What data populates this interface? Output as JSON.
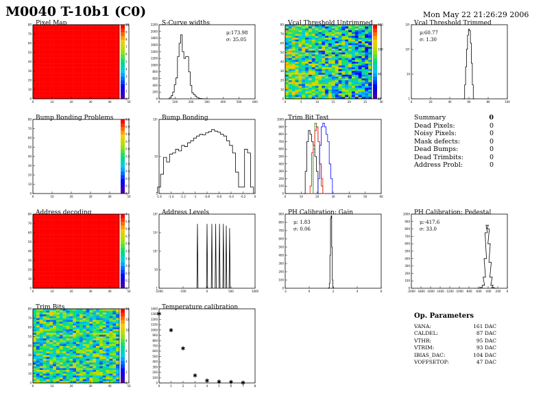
{
  "header": {
    "title": "M0040 T-10b1 (C0)",
    "date": "Mon May 22 21:26:29 2006"
  },
  "panels": {
    "pixel_map": {
      "title": "Pixel Map"
    },
    "scurve": {
      "title": "S-Curve widths",
      "mu": "μ:173.98",
      "sigma": "σ: 35.05"
    },
    "vcal_untrimmed": {
      "title": "Vcal Threshold Untrimmed"
    },
    "vcal_trimmed": {
      "title": "Vcal Threshold Trimmed",
      "mu": "μ:60.77",
      "sigma": "σ: 1.30"
    },
    "bump_problems": {
      "title": "Bump Bonding Problems"
    },
    "bump_bonding": {
      "title": "Bump Bonding"
    },
    "trim_bit_test": {
      "title": "Trim Bit Test"
    },
    "address_decoding": {
      "title": "Address decoding"
    },
    "address_levels": {
      "title": "Address Levels"
    },
    "ph_gain": {
      "title": "PH Calibration: Gain",
      "mu": "μ: 1.83",
      "sigma": "σ: 0.06"
    },
    "ph_pedestal": {
      "title": "PH Calibration: Pedestal",
      "mu": "μ:-417.6",
      "sigma": "σ: 33.0"
    },
    "trim_bits": {
      "title": "Trim Bits"
    },
    "temperature": {
      "title": "Temperature calibration"
    }
  },
  "summary": {
    "title": "Summary",
    "total": "0",
    "rows": [
      {
        "label": "Dead Pixels:",
        "value": "0"
      },
      {
        "label": "Noisy Pixels:",
        "value": "0"
      },
      {
        "label": "Mask defects:",
        "value": "0"
      },
      {
        "label": "Dead Bumps:",
        "value": "0"
      },
      {
        "label": "Dead Trimbits:",
        "value": "0"
      },
      {
        "label": "Address Probl:",
        "value": "0"
      }
    ]
  },
  "op_params": {
    "title": "Op. Parameters",
    "rows": [
      {
        "label": "VANA:",
        "value": "161 DAC"
      },
      {
        "label": "CALDEL:",
        "value": "87 DAC"
      },
      {
        "label": "VTHR:",
        "value": "95 DAC"
      },
      {
        "label": "VTRIM:",
        "value": "93 DAC"
      },
      {
        "label": "IBIAS_DAC:",
        "value": "104 DAC"
      },
      {
        "label": "VOFFSETOP:",
        "value": "47 DAC"
      }
    ]
  },
  "chart_data": [
    {
      "id": "pixel_map",
      "type": "heatmap",
      "title": "Pixel Map",
      "uniform_value": 10,
      "xticks": [
        0,
        10,
        20,
        30,
        40,
        50
      ],
      "yticks": [
        0,
        10,
        20,
        30,
        40,
        50,
        60,
        70,
        80
      ],
      "zticks": [
        "0",
        "1",
        "2",
        "3",
        "4",
        "5",
        "6",
        "7",
        "8",
        "9",
        "10"
      ]
    },
    {
      "id": "scurve",
      "type": "line",
      "title": "S-Curve widths",
      "x": [
        60,
        70,
        80,
        90,
        100,
        110,
        120,
        130,
        140,
        150,
        160,
        170,
        180,
        190,
        200,
        210,
        220,
        230,
        240,
        250,
        260,
        270,
        280,
        290,
        300
      ],
      "y": [
        0,
        30,
        90,
        200,
        420,
        620,
        1250,
        1650,
        1900,
        1400,
        1200,
        1250,
        1250,
        800,
        400,
        180,
        130,
        80,
        40,
        20,
        10,
        5,
        2,
        0,
        0
      ],
      "xlim": [
        0,
        600
      ],
      "ylim": [
        0,
        2200
      ],
      "xticks": [
        "0",
        "100",
        "200",
        "300",
        "400",
        "500",
        "600"
      ],
      "yticks": [
        "0",
        "200",
        "400",
        "600",
        "800",
        "1000",
        "1200",
        "1400",
        "1600",
        "1800",
        "2000",
        "2200"
      ]
    },
    {
      "id": "vcal_untrimmed",
      "type": "heatmap",
      "title": "Vcal Threshold Untrimmed",
      "xticks": [
        0,
        5,
        10,
        15,
        20,
        25,
        30
      ],
      "yticks": [
        0,
        10,
        20,
        30,
        40,
        50,
        60,
        70,
        80
      ],
      "zticks": [
        "80",
        "90",
        "100",
        "110"
      ]
    },
    {
      "id": "vcal_trimmed",
      "type": "line",
      "title": "Vcal Threshold Trimmed",
      "x": [
        54,
        55,
        56,
        57,
        58,
        59,
        60,
        61,
        62,
        63,
        64,
        65,
        66
      ],
      "y": [
        0,
        1,
        5,
        40,
        300,
        1500,
        3000,
        2500,
        600,
        60,
        5,
        1,
        0
      ],
      "xlim": [
        0,
        100
      ],
      "ylim": [
        1,
        5000
      ],
      "logy": true,
      "xticks": [
        "0",
        "20",
        "40",
        "60",
        "80",
        "100"
      ],
      "yticks": [
        "1",
        "10",
        "10²",
        "10³"
      ]
    },
    {
      "id": "bump_problems",
      "type": "heatmap",
      "title": "Bump Bonding Problems",
      "empty": true,
      "xticks": [
        0,
        10,
        20,
        30,
        40,
        50
      ],
      "yticks": [
        0,
        10,
        20,
        30,
        40,
        50,
        60,
        70,
        80
      ],
      "zticks": [
        "0",
        "0.1",
        "0.2",
        "0.3",
        "0.4",
        "0.5",
        "0.6",
        "0.7",
        "0.8",
        "0.9",
        "1.0"
      ]
    },
    {
      "id": "bump_bonding",
      "type": "line",
      "title": "Bump Bonding",
      "x": [
        -1.6,
        -1.55,
        -1.5,
        -1.45,
        -1.4,
        -1.35,
        -1.3,
        -1.25,
        -1.2,
        -1.15,
        -1.1,
        -1.05,
        -1.0,
        -0.95,
        -0.9,
        -0.85,
        -0.8,
        -0.75,
        -0.7,
        -0.65,
        -0.6,
        -0.55,
        -0.5,
        -0.45,
        -0.4,
        -0.35,
        -0.3,
        -0.25,
        -0.2,
        -0.15,
        -0.1,
        -0.05
      ],
      "y": [
        1,
        4,
        25,
        15,
        35,
        40,
        60,
        50,
        90,
        80,
        120,
        150,
        200,
        250,
        300,
        280,
        350,
        400,
        500,
        420,
        380,
        300,
        250,
        150,
        90,
        40,
        5,
        1,
        1,
        60,
        40,
        1
      ],
      "xlim": [
        -1.6,
        0
      ],
      "ylim": [
        0.5,
        1500
      ],
      "logy": true,
      "xticks": [
        "-1.6",
        "-1.4",
        "-1.2",
        "-1",
        "-0.8",
        "-0.6",
        "-0.4",
        "-0.2",
        "0"
      ],
      "yticks": [
        "1",
        "10",
        "10²"
      ]
    },
    {
      "id": "trim_bit_test",
      "type": "line",
      "title": "Trim Bit Test",
      "xlim": [
        0,
        60
      ],
      "ylim": [
        0,
        1000
      ],
      "xticks": [
        "0",
        "10",
        "20",
        "30",
        "40",
        "50",
        "60"
      ],
      "yticks": [
        "0",
        "100",
        "200",
        "300",
        "400",
        "500",
        "600",
        "700",
        "800",
        "900",
        "1000"
      ],
      "series": [
        {
          "color": "#000000",
          "x": [
            12,
            13,
            14,
            15,
            16,
            17,
            18,
            19,
            20,
            21
          ],
          "y": [
            0,
            300,
            700,
            850,
            800,
            700,
            650,
            500,
            300,
            0
          ]
        },
        {
          "color": "#008000",
          "x": [
            17,
            18,
            19,
            20,
            21,
            22,
            23,
            24
          ],
          "y": [
            0,
            600,
            950,
            900,
            700,
            400,
            100,
            0
          ]
        },
        {
          "color": "#ff0000",
          "x": [
            15,
            16,
            17,
            18,
            19,
            20,
            21,
            22,
            23,
            24
          ],
          "y": [
            0,
            100,
            550,
            650,
            850,
            900,
            700,
            400,
            200,
            0
          ]
        },
        {
          "color": "#0000ff",
          "x": [
            20,
            21,
            22,
            23,
            24,
            25,
            26,
            27,
            28,
            29,
            30
          ],
          "y": [
            0,
            200,
            650,
            900,
            950,
            900,
            800,
            700,
            400,
            200,
            0
          ]
        }
      ]
    },
    {
      "id": "address_decoding",
      "type": "heatmap",
      "title": "Address decoding",
      "uniform_value": 1,
      "xticks": [
        0,
        10,
        20,
        30,
        40,
        50
      ],
      "yticks": [
        0,
        10,
        20,
        30,
        40,
        50,
        60,
        70,
        80
      ],
      "zticks": [
        "0",
        "0.1",
        "0.2",
        "0.3",
        "0.4",
        "0.5",
        "0.6",
        "0.7",
        "0.8",
        "0.9",
        "1"
      ]
    },
    {
      "id": "address_levels",
      "type": "line",
      "title": "Address Levels",
      "peaks": [
        -200,
        0,
        100,
        180,
        260,
        340,
        400,
        470
      ],
      "peak_heights": [
        20000,
        20000,
        20000,
        20000,
        20000,
        20000,
        15000,
        10000
      ],
      "xlim": [
        -1000,
        1000
      ],
      "ylim": [
        0.5,
        100000
      ],
      "logy": true,
      "xticks": [
        "-1000",
        "-500",
        "0",
        "500",
        "1000"
      ],
      "yticks": [
        "1",
        "10",
        "10²",
        "10³",
        "10⁴"
      ]
    },
    {
      "id": "ph_gain",
      "type": "line",
      "title": "PH Calibration: Gain",
      "x": [
        1.6,
        1.65,
        1.7,
        1.75,
        1.8,
        1.85,
        1.9,
        1.95,
        2.0,
        2.05
      ],
      "y": [
        0,
        5,
        60,
        400,
        850,
        880,
        500,
        100,
        10,
        0
      ],
      "xlim": [
        -2,
        6
      ],
      "ylim": [
        0,
        900
      ],
      "xticks": [
        "-2",
        "0",
        "2",
        "4",
        "6"
      ],
      "yticks": [
        "0",
        "100",
        "200",
        "300",
        "400",
        "500",
        "600",
        "700",
        "800",
        "900"
      ]
    },
    {
      "id": "ph_pedestal",
      "type": "line",
      "title": "PH Calibration: Pedestal",
      "x": [
        -600,
        -550,
        -500,
        -480,
        -460,
        -440,
        -420,
        -400,
        -380,
        -360,
        -340,
        -320,
        -300,
        -250
      ],
      "y": [
        0,
        10,
        40,
        150,
        400,
        750,
        850,
        800,
        600,
        350,
        150,
        40,
        10,
        0
      ],
      "xlim": [
        -2000,
        0
      ],
      "ylim": [
        0,
        1000
      ],
      "xticks": [
        "-2000",
        "-1800",
        "-1600",
        "-1400",
        "-1200",
        "-1000",
        "-800",
        "-600",
        "-400",
        "-200",
        "0"
      ],
      "yticks": [
        "0",
        "100",
        "200",
        "300",
        "400",
        "500",
        "600",
        "700",
        "800",
        "900",
        "1000"
      ]
    },
    {
      "id": "trim_bits",
      "type": "heatmap",
      "title": "Trim Bits",
      "xticks": [
        0,
        10,
        20,
        30,
        40,
        50
      ],
      "yticks": [
        0,
        10,
        20,
        30,
        40,
        50,
        60,
        70,
        80
      ],
      "zticks": [
        "0",
        "2",
        "4",
        "6",
        "8",
        "10",
        "12",
        "14"
      ]
    },
    {
      "id": "temperature",
      "type": "scatter",
      "title": "Temperature calibration",
      "x": [
        0,
        1,
        2,
        3,
        4,
        5,
        6,
        7
      ],
      "y": [
        1400,
        1070,
        700,
        150,
        50,
        30,
        20,
        10
      ],
      "xlim": [
        0,
        8
      ],
      "ylim": [
        0,
        1500
      ],
      "xticks": [
        "0",
        "1",
        "2",
        "3",
        "4",
        "5",
        "6",
        "7",
        "8"
      ],
      "yticks": [
        "0",
        "100",
        "200",
        "300",
        "400",
        "500",
        "600",
        "700",
        "800",
        "900",
        "1000",
        "1100",
        "1200",
        "1300",
        "1400"
      ]
    }
  ]
}
